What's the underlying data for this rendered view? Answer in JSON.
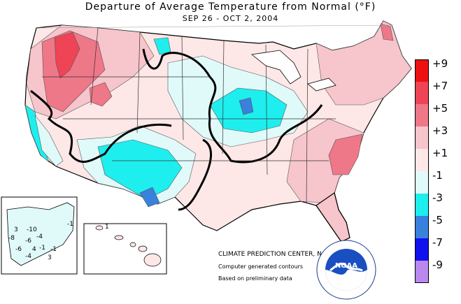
{
  "title": "Departure of Average Temperature from Normal (°F)",
  "subtitle": "SEP 26 - OCT 2, 2004",
  "legend": [
    {
      "label": "+9",
      "color": "#ee1111"
    },
    {
      "label": "+7",
      "color": "#ee4455"
    },
    {
      "label": "+5",
      "color": "#ee7788"
    },
    {
      "label": "+3",
      "color": "#f7c5cc"
    },
    {
      "label": "+1",
      "color": "#fde7e7"
    },
    {
      "label": "-1",
      "color": "#e0fafa"
    },
    {
      "label": "-3",
      "color": "#1eeeee"
    },
    {
      "label": "-5",
      "color": "#3a80dd"
    },
    {
      "label": "-7",
      "color": "#1111ee"
    },
    {
      "label": "-9",
      "color": "#bb88ee"
    }
  ],
  "credits": {
    "center": "CLIMATE PREDICTION CENTER, NOAA",
    "contours": "Computer generated contours",
    "data": "Based on preliminary data"
  },
  "logo": {
    "text": "NOAA",
    "icon": "noaa-logo-icon"
  },
  "alaska_labels": [
    "3",
    "-10",
    "-8",
    "-6",
    "-4",
    "-6",
    "-1",
    "-4",
    "-1",
    "4",
    "-1",
    "3"
  ],
  "hawaii_labels": [
    "1"
  ]
}
